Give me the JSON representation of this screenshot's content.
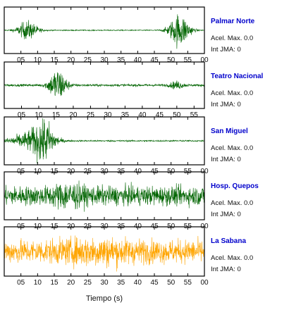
{
  "chart_data": [
    {
      "type": "line",
      "station": "Palmar Norte",
      "accel_label": "Acel. Max. 0.0",
      "jma_label": "Int JMA: 0",
      "x_ticks": [
        "05",
        "10",
        "15",
        "20",
        "25",
        "30",
        "35",
        "40",
        "45",
        "50",
        "55",
        "00"
      ],
      "show_ticks": true,
      "xlim": [
        0,
        60
      ],
      "series_color": "#006400",
      "events": [
        {
          "t": 7,
          "amp": 0.55,
          "width": 3
        },
        {
          "t": 52.5,
          "amp": 1.0,
          "width": 3
        }
      ],
      "noise": 0.03
    },
    {
      "type": "line",
      "station": "Teatro Nacional",
      "accel_label": "Acel. Max. 0.0",
      "jma_label": "Int JMA: 0",
      "x_ticks": [
        "05",
        "10",
        "15",
        "20",
        "25",
        "30",
        "35",
        "40",
        "45",
        "50",
        "55"
      ],
      "show_ticks": true,
      "xlim": [
        0,
        58
      ],
      "series_color": "#006400",
      "events": [
        {
          "t": 15.5,
          "amp": 1.0,
          "width": 2.5
        },
        {
          "t": 50,
          "amp": 0.2,
          "width": 2
        }
      ],
      "noise": 0.07
    },
    {
      "type": "line",
      "station": "San Miguel",
      "accel_label": "Acel. Max. 0.0",
      "jma_label": "Int JMA: 0",
      "x_ticks": [
        "05",
        "10",
        "15",
        "20",
        "25",
        "30",
        "35",
        "40",
        "45",
        "50",
        "55",
        "00"
      ],
      "show_ticks": true,
      "xlim": [
        0,
        60
      ],
      "series_color": "#006400",
      "events": [
        {
          "t": 8,
          "amp": 0.5,
          "width": 6
        },
        {
          "t": 12,
          "amp": 1.0,
          "width": 3
        }
      ],
      "noise": 0.04
    },
    {
      "type": "line",
      "station": "Hosp. Quepos",
      "accel_label": "Acel. Max. 0.0",
      "jma_label": "Int JMA: 0",
      "x_ticks": [
        "05",
        "10",
        "15",
        "20",
        "25",
        "30",
        "35",
        "40",
        "45",
        "50",
        "55",
        "00"
      ],
      "show_ticks": true,
      "xlim": [
        0,
        60
      ],
      "series_color": "#006400",
      "events": [
        {
          "t": 19,
          "amp": 0.35,
          "width": 4
        }
      ],
      "noise": 0.55
    },
    {
      "type": "line",
      "station": "La Sabana",
      "accel_label": "Acel. Max. 0.0",
      "jma_label": "Int JMA: 0",
      "x_ticks": [
        "05",
        "10",
        "15",
        "20",
        "25",
        "30",
        "35",
        "40",
        "45",
        "50",
        "55",
        "00"
      ],
      "show_ticks": true,
      "xlim": [
        0,
        60
      ],
      "series_color": "#FFA500",
      "events": [
        {
          "t": 28,
          "amp": 0.25,
          "width": 10
        }
      ],
      "noise": 0.65
    }
  ],
  "x_axis_title": "Tiempo (s)",
  "station_color": "#0000CC"
}
